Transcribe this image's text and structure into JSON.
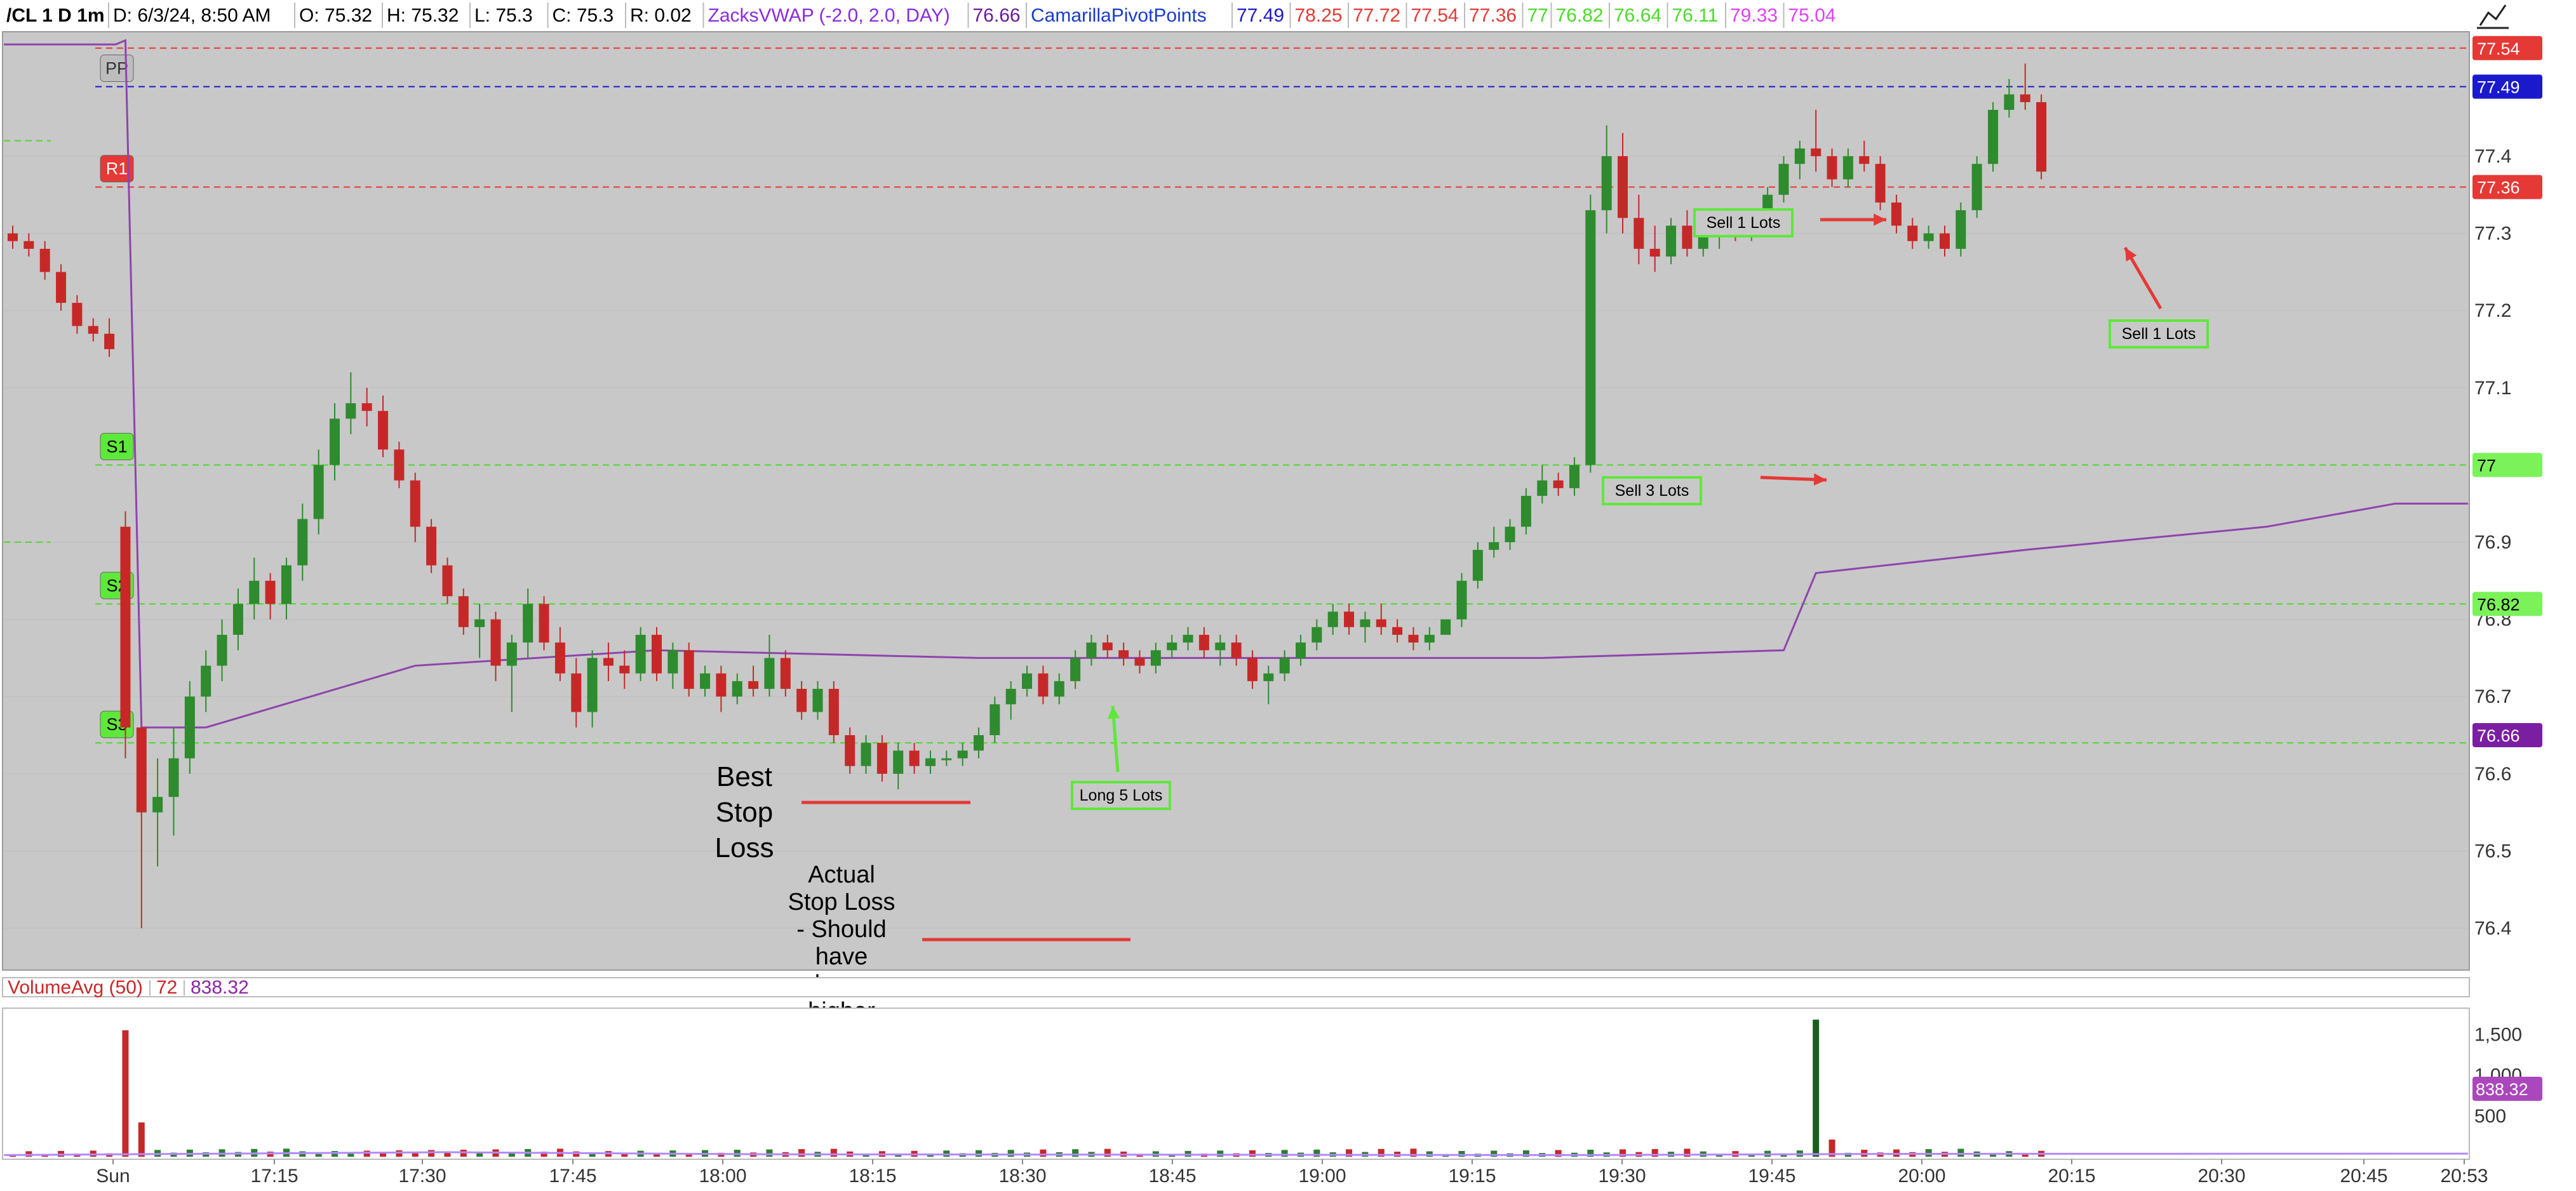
{
  "header": {
    "symbol": "/CL 1 D 1m",
    "items": [
      {
        "text": "D: 6/3/24, 8:50 AM",
        "color": "#000000"
      },
      {
        "text": "O: 75.32",
        "color": "#000000"
      },
      {
        "text": "H: 75.32",
        "color": "#000000"
      },
      {
        "text": "L: 75.3",
        "color": "#000000"
      },
      {
        "text": "C: 75.3",
        "color": "#000000"
      },
      {
        "text": "R: 0.02",
        "color": "#000000"
      },
      {
        "text": "ZacksVWAP (-2.0, 2.0, DAY)",
        "color": "#8a2be2"
      },
      {
        "text": "76.66",
        "color": "#6a1b9a"
      },
      {
        "text": "CamarillaPivotPoints",
        "color": "#1a3ccc"
      },
      {
        "text": "77.49",
        "color": "#1a1acc"
      },
      {
        "text": "78.25",
        "color": "#e53935"
      },
      {
        "text": "77.72",
        "color": "#e53935"
      },
      {
        "text": "77.54",
        "color": "#e53935"
      },
      {
        "text": "77.36",
        "color": "#e53935"
      },
      {
        "text": "77",
        "color": "#4cd92a"
      },
      {
        "text": "76.82",
        "color": "#4cd92a"
      },
      {
        "text": "76.64",
        "color": "#4cd92a"
      },
      {
        "text": "76.11",
        "color": "#4cd92a"
      },
      {
        "text": "79.33",
        "color": "#e040fb"
      },
      {
        "text": "75.04",
        "color": "#e040fb"
      }
    ]
  },
  "chart_data": {
    "type": "candlestick",
    "y_ticks": [
      76.4,
      76.5,
      76.6,
      76.7,
      76.8,
      76.9,
      77.1,
      77.2,
      77.3,
      77.4
    ],
    "x_ticks": [
      "Sun",
      "17:15",
      "17:30",
      "17:45",
      "18:00",
      "18:15",
      "18:30",
      "18:45",
      "19:00",
      "19:15",
      "19:30",
      "19:45",
      "20:00",
      "20:15",
      "20:30",
      "20:45",
      "20:53"
    ],
    "pivot_levels": [
      {
        "label": "",
        "value": 77.54,
        "color": "#e53935",
        "tag": "77.54"
      },
      {
        "label": "PP",
        "value": 77.49,
        "color": "#1a1acc",
        "tag": "77.49"
      },
      {
        "label": "R1",
        "value": 77.36,
        "color": "#e53935",
        "tag": "77.36"
      },
      {
        "label": "S1",
        "value": 77.0,
        "color": "#4cd92a",
        "tag": "77"
      },
      {
        "label": "S2",
        "value": 76.82,
        "color": "#4cd92a",
        "tag": "76.82"
      },
      {
        "label": "S3",
        "value": 76.64,
        "color": "#4cd92a",
        "tag": ""
      }
    ],
    "vwap_current": "76.66",
    "candles": [
      [
        77.3,
        77.31,
        77.28,
        77.29
      ],
      [
        77.29,
        77.3,
        77.27,
        77.28
      ],
      [
        77.28,
        77.29,
        77.24,
        77.25
      ],
      [
        77.25,
        77.26,
        77.2,
        77.21
      ],
      [
        77.21,
        77.22,
        77.17,
        77.18
      ],
      [
        77.18,
        77.19,
        77.16,
        77.17
      ],
      [
        77.17,
        77.19,
        77.14,
        77.15
      ],
      [
        76.92,
        76.94,
        76.62,
        76.66
      ],
      [
        76.66,
        76.66,
        76.4,
        76.55
      ],
      [
        76.55,
        76.62,
        76.48,
        76.57
      ],
      [
        76.57,
        76.66,
        76.52,
        76.62
      ],
      [
        76.62,
        76.72,
        76.6,
        76.7
      ],
      [
        76.7,
        76.76,
        76.68,
        76.74
      ],
      [
        76.74,
        76.8,
        76.72,
        76.78
      ],
      [
        76.78,
        76.84,
        76.76,
        76.82
      ],
      [
        76.82,
        76.88,
        76.8,
        76.85
      ],
      [
        76.85,
        76.86,
        76.8,
        76.82
      ],
      [
        76.82,
        76.88,
        76.8,
        76.87
      ],
      [
        76.87,
        76.95,
        76.85,
        76.93
      ],
      [
        76.93,
        77.02,
        76.91,
        77.0
      ],
      [
        77.0,
        77.08,
        76.98,
        77.06
      ],
      [
        77.06,
        77.12,
        77.04,
        77.08
      ],
      [
        77.08,
        77.1,
        77.05,
        77.07
      ],
      [
        77.07,
        77.09,
        77.01,
        77.02
      ],
      [
        77.02,
        77.03,
        76.97,
        76.98
      ],
      [
        76.98,
        76.99,
        76.9,
        76.92
      ],
      [
        76.92,
        76.93,
        76.86,
        76.87
      ],
      [
        76.87,
        76.88,
        76.82,
        76.83
      ],
      [
        76.83,
        76.84,
        76.78,
        76.79
      ],
      [
        76.79,
        76.82,
        76.75,
        76.8
      ],
      [
        76.8,
        76.81,
        76.72,
        76.74
      ],
      [
        76.74,
        76.78,
        76.68,
        76.77
      ],
      [
        76.77,
        76.84,
        76.75,
        76.82
      ],
      [
        76.82,
        76.83,
        76.76,
        76.77
      ],
      [
        76.77,
        76.79,
        76.72,
        76.73
      ],
      [
        76.73,
        76.75,
        76.66,
        76.68
      ],
      [
        76.68,
        76.76,
        76.66,
        76.75
      ],
      [
        76.75,
        76.77,
        76.72,
        76.74
      ],
      [
        76.74,
        76.76,
        76.71,
        76.73
      ],
      [
        76.73,
        76.79,
        76.72,
        76.78
      ],
      [
        76.78,
        76.79,
        76.72,
        76.73
      ],
      [
        76.73,
        76.77,
        76.71,
        76.76
      ],
      [
        76.76,
        76.77,
        76.7,
        76.71
      ],
      [
        76.71,
        76.74,
        76.7,
        76.73
      ],
      [
        76.73,
        76.74,
        76.68,
        76.7
      ],
      [
        76.7,
        76.73,
        76.69,
        76.72
      ],
      [
        76.72,
        76.74,
        76.7,
        76.71
      ],
      [
        76.71,
        76.78,
        76.7,
        76.75
      ],
      [
        76.75,
        76.76,
        76.7,
        76.71
      ],
      [
        76.71,
        76.72,
        76.67,
        76.68
      ],
      [
        76.68,
        76.72,
        76.67,
        76.71
      ],
      [
        76.71,
        76.72,
        76.64,
        76.65
      ],
      [
        76.65,
        76.66,
        76.6,
        76.61
      ],
      [
        76.61,
        76.65,
        76.6,
        76.64
      ],
      [
        76.64,
        76.65,
        76.59,
        76.6
      ],
      [
        76.6,
        76.64,
        76.58,
        76.63
      ],
      [
        76.63,
        76.64,
        76.6,
        76.61
      ],
      [
        76.61,
        76.63,
        76.6,
        76.62
      ],
      [
        76.62,
        76.63,
        76.61,
        76.62
      ],
      [
        76.62,
        76.64,
        76.61,
        76.63
      ],
      [
        76.63,
        76.66,
        76.62,
        76.65
      ],
      [
        76.65,
        76.7,
        76.64,
        76.69
      ],
      [
        76.69,
        76.72,
        76.67,
        76.71
      ],
      [
        76.71,
        76.74,
        76.7,
        76.73
      ],
      [
        76.73,
        76.74,
        76.69,
        76.7
      ],
      [
        76.7,
        76.73,
        76.69,
        76.72
      ],
      [
        76.72,
        76.76,
        76.71,
        76.75
      ],
      [
        76.75,
        76.78,
        76.74,
        76.77
      ],
      [
        76.77,
        76.78,
        76.75,
        76.76
      ],
      [
        76.76,
        76.77,
        76.74,
        76.75
      ],
      [
        76.75,
        76.76,
        76.73,
        76.74
      ],
      [
        76.74,
        76.77,
        76.73,
        76.76
      ],
      [
        76.76,
        76.78,
        76.75,
        76.77
      ],
      [
        76.77,
        76.79,
        76.76,
        76.78
      ],
      [
        76.78,
        76.79,
        76.75,
        76.76
      ],
      [
        76.76,
        76.78,
        76.74,
        76.77
      ],
      [
        76.77,
        76.78,
        76.74,
        76.75
      ],
      [
        76.75,
        76.76,
        76.71,
        76.72
      ],
      [
        76.72,
        76.74,
        76.69,
        76.73
      ],
      [
        76.73,
        76.76,
        76.72,
        76.75
      ],
      [
        76.75,
        76.78,
        76.74,
        76.77
      ],
      [
        76.77,
        76.8,
        76.76,
        76.79
      ],
      [
        76.79,
        76.82,
        76.78,
        76.81
      ],
      [
        76.81,
        76.82,
        76.78,
        76.79
      ],
      [
        76.79,
        76.81,
        76.77,
        76.8
      ],
      [
        76.8,
        76.82,
        76.78,
        76.79
      ],
      [
        76.79,
        76.8,
        76.77,
        76.78
      ],
      [
        76.78,
        76.79,
        76.76,
        76.77
      ],
      [
        76.77,
        76.79,
        76.76,
        76.78
      ],
      [
        76.78,
        76.8,
        76.78,
        76.8
      ],
      [
        76.8,
        76.86,
        76.79,
        76.85
      ],
      [
        76.85,
        76.9,
        76.84,
        76.89
      ],
      [
        76.89,
        76.92,
        76.88,
        76.9
      ],
      [
        76.9,
        76.93,
        76.89,
        76.92
      ],
      [
        76.92,
        76.97,
        76.91,
        76.96
      ],
      [
        76.96,
        77.0,
        76.95,
        76.98
      ],
      [
        76.98,
        76.99,
        76.96,
        76.97
      ],
      [
        76.97,
        77.01,
        76.96,
        77.0
      ],
      [
        77.0,
        77.35,
        76.99,
        77.33
      ],
      [
        77.33,
        77.44,
        77.3,
        77.4
      ],
      [
        77.4,
        77.43,
        77.3,
        77.32
      ],
      [
        77.32,
        77.35,
        77.26,
        77.28
      ],
      [
        77.28,
        77.31,
        77.25,
        77.27
      ],
      [
        77.27,
        77.32,
        77.26,
        77.31
      ],
      [
        77.31,
        77.33,
        77.27,
        77.28
      ],
      [
        77.28,
        77.32,
        77.27,
        77.3
      ],
      [
        77.3,
        77.33,
        77.28,
        77.31
      ],
      [
        77.31,
        77.33,
        77.29,
        77.3
      ],
      [
        77.3,
        77.33,
        77.29,
        77.32
      ],
      [
        77.32,
        77.36,
        77.31,
        77.35
      ],
      [
        77.35,
        77.4,
        77.34,
        77.39
      ],
      [
        77.39,
        77.42,
        77.37,
        77.41
      ],
      [
        77.41,
        77.46,
        77.38,
        77.4
      ],
      [
        77.4,
        77.41,
        77.36,
        77.37
      ],
      [
        77.37,
        77.41,
        77.36,
        77.4
      ],
      [
        77.4,
        77.42,
        77.38,
        77.39
      ],
      [
        77.39,
        77.4,
        77.33,
        77.34
      ],
      [
        77.34,
        77.35,
        77.3,
        77.31
      ],
      [
        77.31,
        77.32,
        77.28,
        77.29
      ],
      [
        77.29,
        77.31,
        77.28,
        77.3
      ],
      [
        77.3,
        77.31,
        77.27,
        77.28
      ],
      [
        77.28,
        77.34,
        77.27,
        77.33
      ],
      [
        77.33,
        77.4,
        77.32,
        77.39
      ],
      [
        77.39,
        77.47,
        77.38,
        77.46
      ],
      [
        77.46,
        77.5,
        77.45,
        77.48
      ],
      [
        77.48,
        77.52,
        77.46,
        77.47
      ],
      [
        77.47,
        77.48,
        77.37,
        77.38
      ]
    ],
    "vwap": [
      [
        7,
        77.55
      ],
      [
        8,
        76.66
      ],
      [
        12,
        76.66
      ],
      [
        25,
        76.74
      ],
      [
        40,
        76.76
      ],
      [
        60,
        76.75
      ],
      [
        95,
        76.75
      ],
      [
        110,
        76.76
      ],
      [
        112,
        76.86
      ],
      [
        125,
        76.89
      ],
      [
        140,
        76.92
      ],
      [
        148,
        76.95
      ]
    ],
    "volume": {
      "label": "VolumeAvg (50)",
      "current": "72",
      "average": "838.32",
      "y_ticks": [
        500,
        1000,
        1500
      ],
      "spikes": [
        [
          7,
          1550
        ],
        [
          8,
          420
        ],
        [
          112,
          1680
        ],
        [
          113,
          210
        ]
      ]
    },
    "annotations": [
      {
        "text": "Sell 1 Lots",
        "kind": "box"
      },
      {
        "text": "Sell 1 Lots",
        "kind": "box"
      },
      {
        "text": "Sell 3 Lots",
        "kind": "box"
      },
      {
        "text": "Long 5 Lots",
        "kind": "box"
      },
      {
        "lines": [
          "Best",
          "Stop",
          "Loss"
        ],
        "kind": "note"
      },
      {
        "lines": [
          "Actual",
          "Stop Loss",
          "- Should",
          "have",
          "been",
          "higher"
        ],
        "kind": "note"
      }
    ]
  }
}
